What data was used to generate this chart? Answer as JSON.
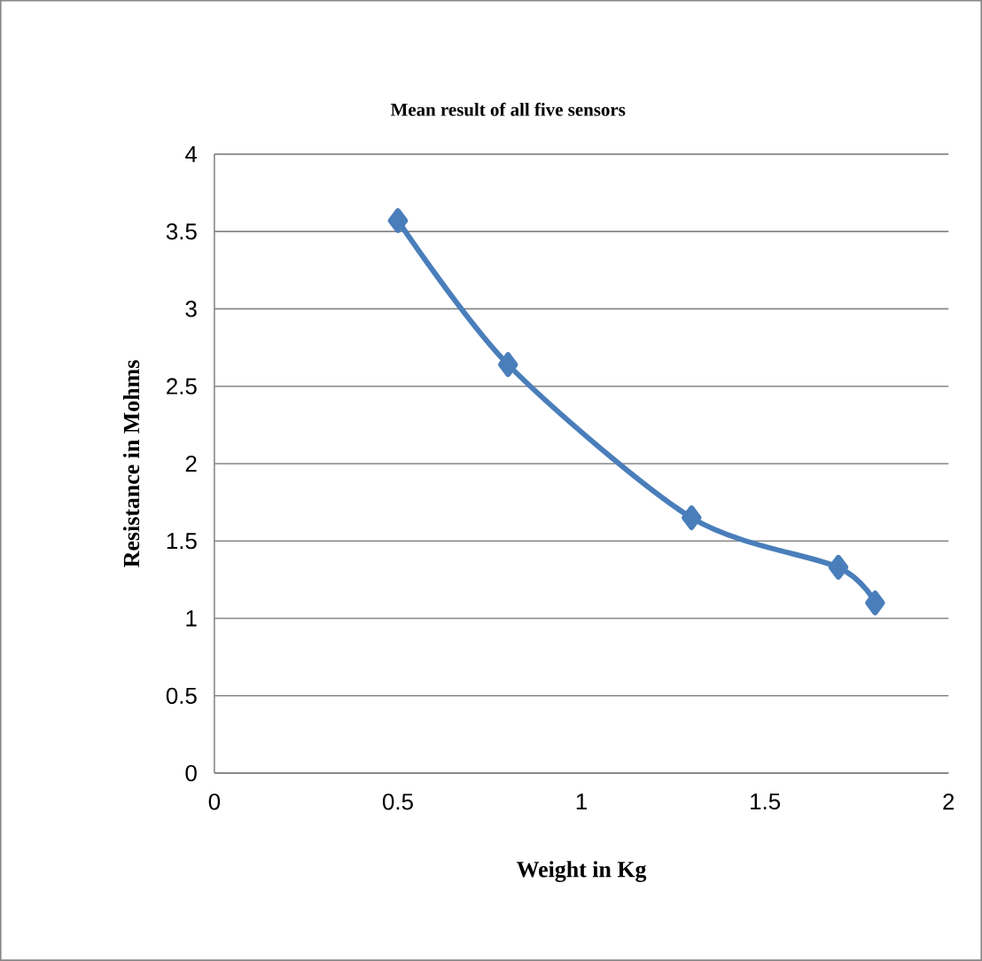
{
  "chart_data": {
    "type": "line",
    "title": "Mean result of all five sensors",
    "xlabel": "Weight in Kg",
    "ylabel": "Resistance in Mohms",
    "x": [
      0.5,
      0.8,
      1.3,
      1.7,
      1.8
    ],
    "series": [
      {
        "color": "#4a7ebb",
        "values": [
          3.57,
          2.64,
          1.65,
          1.33,
          1.1
        ]
      }
    ],
    "xlim": [
      0,
      2
    ],
    "xticks": [
      0,
      0.5,
      1,
      1.5,
      2
    ],
    "ylim": [
      0,
      4
    ],
    "yticks": [
      0,
      0.5,
      1,
      1.5,
      2,
      2.5,
      3,
      3.5,
      4
    ],
    "grid": "y",
    "marker": "diamond",
    "line_style": "solid"
  }
}
